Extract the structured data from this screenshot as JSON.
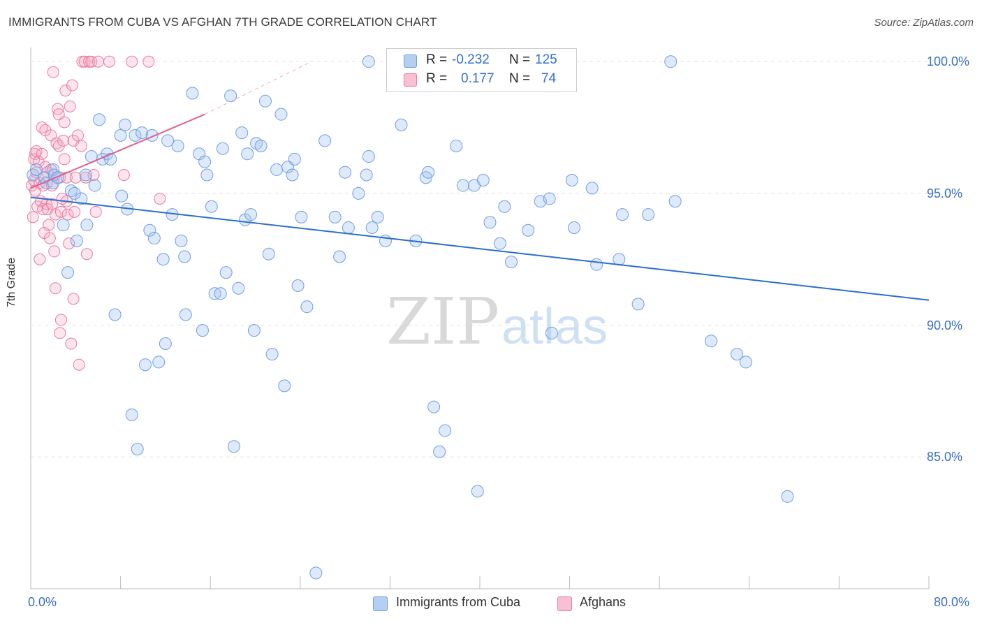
{
  "header": {
    "title": "IMMIGRANTS FROM CUBA VS AFGHAN 7TH GRADE CORRELATION CHART",
    "source": "Source: ZipAtlas.com"
  },
  "watermark": {
    "zip": "ZIP",
    "atlas": "atlas"
  },
  "legend": {
    "r_label": "R =",
    "n_label": "N =",
    "rows": [
      {
        "r": "-0.232",
        "n": "125",
        "fill": "#b5cff3",
        "stroke": "#6f9fe0"
      },
      {
        "r": "0.177",
        "n": "74",
        "fill": "#f9bfd3",
        "stroke": "#e87aa0"
      }
    ]
  },
  "bottom_legend": {
    "series1": "Immigrants from Cuba",
    "series2": "Afghans"
  },
  "colors": {
    "blue": "#2a6fcf",
    "pink": "#e0608f",
    "blue_fill": "rgba(160,195,240,0.35)",
    "pink_fill": "rgba(245,170,195,0.30)"
  },
  "chart_data": {
    "type": "scatter",
    "title": "IMMIGRANTS FROM CUBA VS AFGHAN 7TH GRADE CORRELATION CHART",
    "xlabel": "",
    "ylabel": "7th Grade",
    "xlim": [
      0,
      80
    ],
    "ylim": [
      80.0,
      100.8
    ],
    "x_tick_labels": [
      "0.0%",
      "80.0%"
    ],
    "y_ticks": [
      100,
      95,
      90,
      85
    ],
    "y_tick_labels": [
      "100.0%",
      "95.0%",
      "90.0%",
      "85.0%"
    ],
    "grid": true,
    "legend_position": "top-center",
    "series": [
      {
        "name": "Immigrants from Cuba",
        "color": "#6f9fe0",
        "trend": {
          "x": [
            0,
            80
          ],
          "y": [
            94.85,
            90.95
          ]
        },
        "points": [
          [
            0.2,
            95.7
          ],
          [
            0.5,
            95.9
          ],
          [
            1.2,
            95.6
          ],
          [
            1.4,
            95.4
          ],
          [
            2.0,
            95.9
          ],
          [
            2.0,
            95.4
          ],
          [
            2.1,
            95.7
          ],
          [
            2.4,
            95.6
          ],
          [
            2.9,
            93.8
          ],
          [
            3.3,
            92.0
          ],
          [
            3.6,
            95.1
          ],
          [
            3.9,
            95.0
          ],
          [
            4.1,
            93.2
          ],
          [
            4.5,
            94.8
          ],
          [
            4.9,
            95.7
          ],
          [
            5.0,
            93.8
          ],
          [
            5.4,
            96.4
          ],
          [
            5.7,
            95.3
          ],
          [
            6.1,
            97.8
          ],
          [
            6.4,
            96.3
          ],
          [
            6.8,
            96.5
          ],
          [
            7.1,
            96.3
          ],
          [
            7.5,
            90.4
          ],
          [
            8.0,
            97.2
          ],
          [
            8.1,
            94.9
          ],
          [
            8.4,
            97.6
          ],
          [
            8.6,
            94.4
          ],
          [
            9.0,
            86.6
          ],
          [
            9.3,
            97.2
          ],
          [
            9.5,
            85.3
          ],
          [
            9.9,
            97.3
          ],
          [
            10.2,
            88.5
          ],
          [
            10.6,
            93.6
          ],
          [
            10.8,
            97.2
          ],
          [
            11.0,
            93.3
          ],
          [
            11.4,
            88.6
          ],
          [
            11.8,
            92.5
          ],
          [
            12.0,
            89.3
          ],
          [
            12.2,
            97.0
          ],
          [
            12.6,
            94.2
          ],
          [
            13.1,
            96.8
          ],
          [
            13.4,
            93.2
          ],
          [
            13.7,
            92.6
          ],
          [
            13.8,
            90.4
          ],
          [
            14.4,
            98.8
          ],
          [
            15.0,
            96.5
          ],
          [
            15.3,
            89.8
          ],
          [
            15.5,
            96.2
          ],
          [
            15.7,
            95.7
          ],
          [
            16.1,
            94.5
          ],
          [
            16.4,
            91.2
          ],
          [
            16.9,
            91.2
          ],
          [
            17.1,
            96.7
          ],
          [
            17.4,
            92.0
          ],
          [
            17.8,
            98.7
          ],
          [
            18.1,
            85.4
          ],
          [
            18.5,
            91.4
          ],
          [
            18.8,
            97.3
          ],
          [
            19.1,
            94.0
          ],
          [
            19.3,
            96.5
          ],
          [
            19.6,
            94.2
          ],
          [
            19.9,
            89.8
          ],
          [
            20.1,
            96.9
          ],
          [
            20.5,
            96.8
          ],
          [
            20.9,
            98.5
          ],
          [
            21.2,
            92.7
          ],
          [
            21.5,
            88.9
          ],
          [
            21.9,
            95.9
          ],
          [
            22.3,
            98.0
          ],
          [
            22.6,
            87.7
          ],
          [
            22.9,
            96.0
          ],
          [
            23.3,
            95.7
          ],
          [
            23.5,
            96.3
          ],
          [
            23.8,
            91.5
          ],
          [
            24.1,
            94.1
          ],
          [
            24.6,
            90.7
          ],
          [
            25.4,
            80.6
          ],
          [
            26.2,
            97.0
          ],
          [
            27.1,
            94.1
          ],
          [
            27.5,
            92.6
          ],
          [
            28.0,
            95.8
          ],
          [
            28.3,
            93.7
          ],
          [
            29.2,
            95.0
          ],
          [
            29.9,
            95.7
          ],
          [
            30.1,
            96.4
          ],
          [
            30.4,
            93.7
          ],
          [
            30.9,
            94.1
          ],
          [
            31.6,
            93.2
          ],
          [
            33.0,
            97.6
          ],
          [
            34.3,
            93.2
          ],
          [
            35.2,
            95.6
          ],
          [
            35.4,
            95.8
          ],
          [
            35.9,
            86.9
          ],
          [
            36.4,
            85.2
          ],
          [
            36.9,
            86.0
          ],
          [
            37.9,
            96.8
          ],
          [
            38.5,
            95.3
          ],
          [
            39.5,
            95.3
          ],
          [
            39.8,
            83.7
          ],
          [
            40.3,
            95.5
          ],
          [
            40.9,
            93.9
          ],
          [
            41.8,
            93.1
          ],
          [
            42.2,
            94.5
          ],
          [
            42.8,
            92.4
          ],
          [
            44.3,
            93.6
          ],
          [
            45.4,
            94.7
          ],
          [
            46.2,
            94.8
          ],
          [
            46.4,
            89.7
          ],
          [
            48.2,
            95.5
          ],
          [
            48.4,
            93.7
          ],
          [
            50.0,
            95.2
          ],
          [
            50.4,
            92.3
          ],
          [
            52.4,
            92.5
          ],
          [
            52.7,
            94.2
          ],
          [
            54.1,
            90.8
          ],
          [
            55.0,
            94.2
          ],
          [
            57.0,
            100.0
          ],
          [
            57.4,
            94.7
          ],
          [
            60.6,
            89.4
          ],
          [
            62.9,
            88.9
          ],
          [
            63.7,
            88.6
          ],
          [
            67.4,
            83.5
          ],
          [
            30.1,
            100.0
          ]
        ]
      },
      {
        "name": "Afghans",
        "color": "#e87aa0",
        "trend": {
          "x": [
            0,
            15.5
          ],
          "y": [
            95.2,
            98.0
          ]
        },
        "trend_ext": {
          "x": [
            15.5,
            25.0
          ],
          "y": [
            98.0,
            100.0
          ]
        },
        "points": [
          [
            0.1,
            95.3
          ],
          [
            0.2,
            94.1
          ],
          [
            0.3,
            96.3
          ],
          [
            0.3,
            95.5
          ],
          [
            0.4,
            96.5
          ],
          [
            0.4,
            95.1
          ],
          [
            0.5,
            96.6
          ],
          [
            0.5,
            95.8
          ],
          [
            0.6,
            94.5
          ],
          [
            0.7,
            96.2
          ],
          [
            0.8,
            95.4
          ],
          [
            0.8,
            92.5
          ],
          [
            0.9,
            94.7
          ],
          [
            1.0,
            97.5
          ],
          [
            1.0,
            96.5
          ],
          [
            1.1,
            95.3
          ],
          [
            1.1,
            94.4
          ],
          [
            1.2,
            93.5
          ],
          [
            1.3,
            97.4
          ],
          [
            1.3,
            96.0
          ],
          [
            1.4,
            94.6
          ],
          [
            1.5,
            95.8
          ],
          [
            1.5,
            94.4
          ],
          [
            1.6,
            93.8
          ],
          [
            1.7,
            93.3
          ],
          [
            1.8,
            97.2
          ],
          [
            1.8,
            95.9
          ],
          [
            1.9,
            95.3
          ],
          [
            1.9,
            94.6
          ],
          [
            2.0,
            99.6
          ],
          [
            2.1,
            92.8
          ],
          [
            2.2,
            91.4
          ],
          [
            2.2,
            94.2
          ],
          [
            2.3,
            96.9
          ],
          [
            2.4,
            98.2
          ],
          [
            2.5,
            96.8
          ],
          [
            2.5,
            98.0
          ],
          [
            2.6,
            95.6
          ],
          [
            2.6,
            89.7
          ],
          [
            2.7,
            94.3
          ],
          [
            2.7,
            90.2
          ],
          [
            2.8,
            94.8
          ],
          [
            2.9,
            97.0
          ],
          [
            3.0,
            97.7
          ],
          [
            3.0,
            96.3
          ],
          [
            3.1,
            98.9
          ],
          [
            3.2,
            95.6
          ],
          [
            3.2,
            94.7
          ],
          [
            3.3,
            94.2
          ],
          [
            3.4,
            93.1
          ],
          [
            3.5,
            98.3
          ],
          [
            3.6,
            89.3
          ],
          [
            3.7,
            99.1
          ],
          [
            3.8,
            97.0
          ],
          [
            3.8,
            91.0
          ],
          [
            3.9,
            94.3
          ],
          [
            4.0,
            95.6
          ],
          [
            4.2,
            97.2
          ],
          [
            4.3,
            88.5
          ],
          [
            4.5,
            96.8
          ],
          [
            4.6,
            100.0
          ],
          [
            4.8,
            100.0
          ],
          [
            4.9,
            95.6
          ],
          [
            5.0,
            92.7
          ],
          [
            5.2,
            100.0
          ],
          [
            5.4,
            100.0
          ],
          [
            5.6,
            95.7
          ],
          [
            5.8,
            94.3
          ],
          [
            6.0,
            100.0
          ],
          [
            7.0,
            100.0
          ],
          [
            8.3,
            95.7
          ],
          [
            9.0,
            100.0
          ],
          [
            10.5,
            100.0
          ],
          [
            11.5,
            94.8
          ]
        ]
      }
    ]
  }
}
